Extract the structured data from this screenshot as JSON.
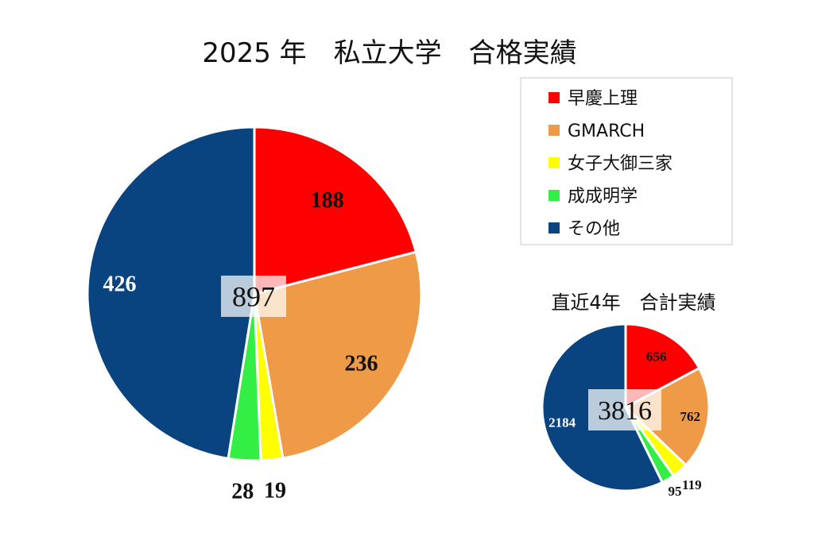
{
  "colors": {
    "soukei": "#ff0000",
    "gmarch": "#ee9a46",
    "joshi": "#ffff00",
    "seijo": "#33ee44",
    "other": "#0a4480"
  },
  "legend": {
    "items": [
      {
        "key": "soukei",
        "label": "早慶上理"
      },
      {
        "key": "gmarch",
        "label": "GMARCH"
      },
      {
        "key": "joshi",
        "label": "女子大御三家"
      },
      {
        "key": "seijo",
        "label": "成成明学"
      },
      {
        "key": "other",
        "label": "その他"
      }
    ]
  },
  "chart_data": [
    {
      "type": "pie",
      "title": "2025 年　私立大学　合格実績",
      "center_label": "897",
      "categories": [
        "早慶上理",
        "GMARCH",
        "女子大御三家",
        "成成明学",
        "その他"
      ],
      "values": [
        188,
        236,
        19,
        28,
        426
      ],
      "value_labels": [
        "188",
        "236",
        "19",
        "28",
        "426"
      ],
      "legend": "top-right"
    },
    {
      "type": "pie",
      "title": "直近4年　合計実績",
      "center_label": "3816",
      "categories": [
        "早慶上理",
        "GMARCH",
        "女子大御三家",
        "成成明学",
        "その他"
      ],
      "values": [
        656,
        762,
        119,
        95,
        2184
      ],
      "value_labels": [
        "656",
        "762",
        "119",
        "95",
        "2184"
      ]
    }
  ]
}
